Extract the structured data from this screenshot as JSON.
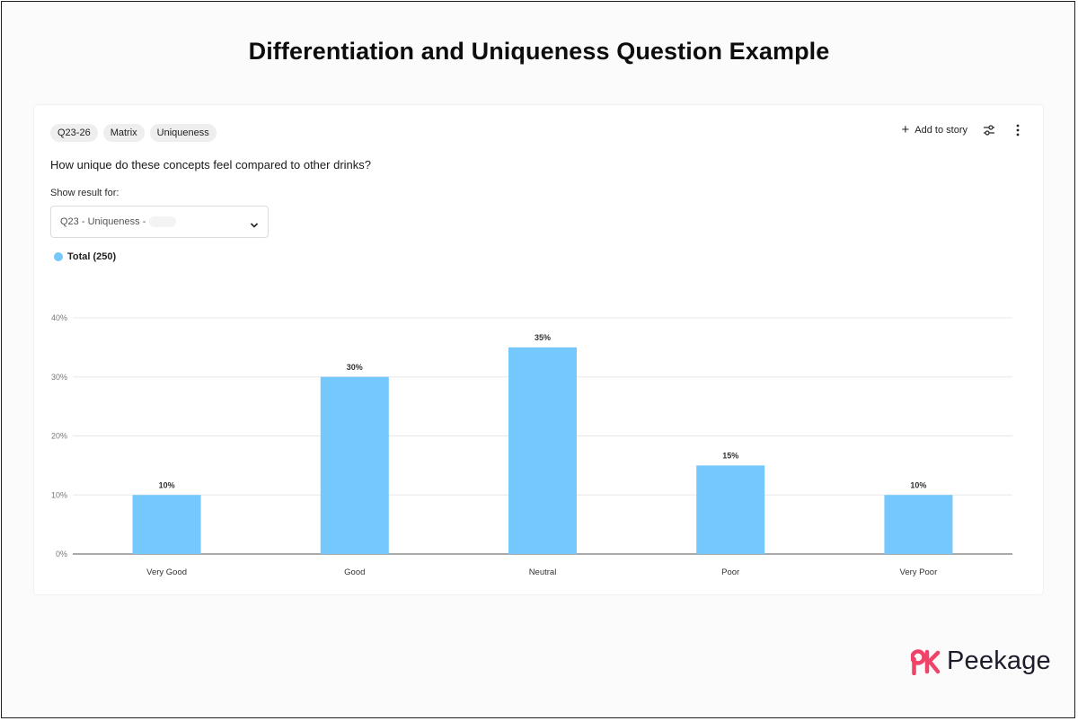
{
  "page": {
    "title": "Differentiation and Uniqueness Question Example"
  },
  "card": {
    "tags": [
      "Q23-26",
      "Matrix",
      "Uniqueness"
    ],
    "toolbar": {
      "add_to_story_label": "Add to story",
      "filter_icon": "sliders-icon",
      "more_icon": "more-vertical-icon"
    },
    "question": "How unique do these concepts feel compared to other drinks?",
    "show_result_label": "Show result for:",
    "select": {
      "value": "Q23 - Uniqueness -"
    },
    "legend": {
      "label": "Total (250)",
      "color": "#74c8fc"
    }
  },
  "chart_data": {
    "type": "bar",
    "categories": [
      "Very Good",
      "Good",
      "Neutral",
      "Poor",
      "Very Poor"
    ],
    "series": [
      {
        "name": "Total (250)",
        "values": [
          10,
          30,
          35,
          15,
          10
        ]
      }
    ],
    "data_labels": [
      "10%",
      "30%",
      "35%",
      "15%",
      "10%"
    ],
    "y_ticks": [
      "0%",
      "10%",
      "20%",
      "30%",
      "40%"
    ],
    "ylim": [
      0,
      40
    ],
    "grid": true,
    "bar_color": "#74c8fc"
  },
  "brand": {
    "name": "Peekage",
    "accent": "#f0436a"
  }
}
